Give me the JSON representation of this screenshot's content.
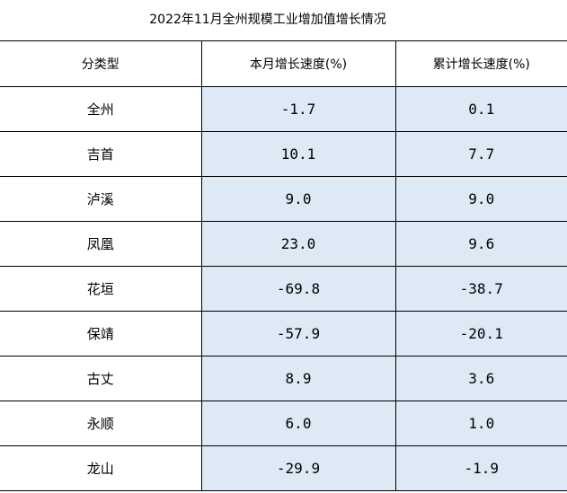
{
  "title": "2022年11月全州规模工业增加值增长情况",
  "table": {
    "headers": [
      "分类型",
      "本月增长速度(%)",
      "累计增长速度(%)"
    ],
    "rows": [
      {
        "name": "全州",
        "month": "-1.7",
        "cumulative": "0.1"
      },
      {
        "name": "吉首",
        "month": "10.1",
        "cumulative": "7.7"
      },
      {
        "name": "泸溪",
        "month": "9.0",
        "cumulative": "9.0"
      },
      {
        "name": "凤凰",
        "month": "23.0",
        "cumulative": "9.6"
      },
      {
        "name": "花垣",
        "month": "-69.8",
        "cumulative": "-38.7"
      },
      {
        "name": "保靖",
        "month": "-57.9",
        "cumulative": "-20.1"
      },
      {
        "name": "古丈",
        "month": "8.9",
        "cumulative": "3.6"
      },
      {
        "name": "永顺",
        "month": "6.0",
        "cumulative": "1.0"
      },
      {
        "name": "龙山",
        "month": "-29.9",
        "cumulative": "-1.9"
      }
    ]
  },
  "colors": {
    "value_cell_background": "#dde9f5",
    "border": "#000000"
  }
}
